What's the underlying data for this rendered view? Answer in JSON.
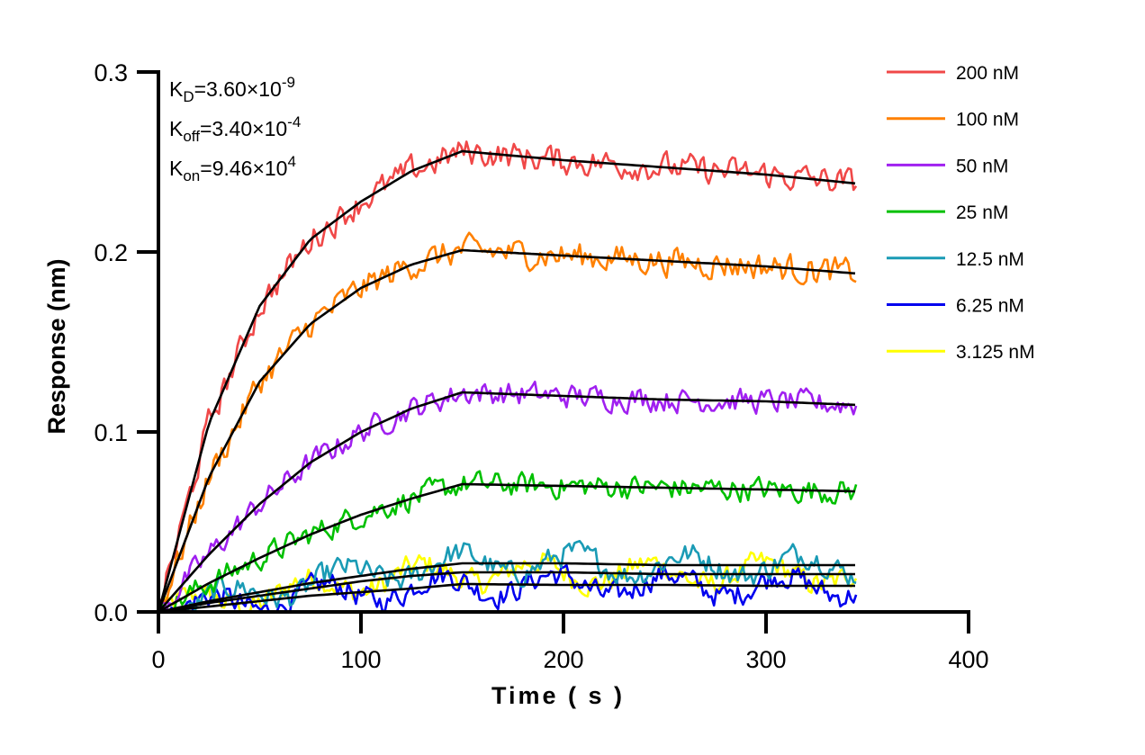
{
  "chart_data": {
    "type": "line",
    "xlabel": "Time ( s )",
    "ylabel": "Response (nm)",
    "xlim": [
      0,
      400
    ],
    "ylim": [
      0,
      0.3
    ],
    "xticks": [
      "0",
      "100",
      "200",
      "300",
      "400"
    ],
    "yticks": [
      "0.0",
      "0.1",
      "0.2",
      "0.3"
    ],
    "grid": false,
    "legend_position": "right",
    "annotations": [
      {
        "main": "K",
        "sub": "D",
        "rest": "=3.60×10",
        "sup": "-9"
      },
      {
        "main": "K",
        "sub": "off",
        "rest": "=3.40×10",
        "sup": "-4"
      },
      {
        "main": "K",
        "sub": "on",
        "rest": "=9.46×10",
        "sup": "4"
      }
    ],
    "fit_color": "#000000",
    "x": [
      0,
      25,
      50,
      75,
      100,
      125,
      150,
      200,
      250,
      300,
      345
    ],
    "series": [
      {
        "name": "200 nM",
        "color": "#f04848",
        "values": [
          0,
          0.105,
          0.17,
          0.207,
          0.228,
          0.245,
          0.256,
          0.251,
          0.247,
          0.243,
          0.238
        ]
      },
      {
        "name": "100 nM",
        "color": "#ff8000",
        "values": [
          0,
          0.075,
          0.128,
          0.16,
          0.18,
          0.193,
          0.201,
          0.198,
          0.195,
          0.192,
          0.188
        ]
      },
      {
        "name": "50 nM",
        "color": "#a020f0",
        "values": [
          0,
          0.032,
          0.06,
          0.083,
          0.1,
          0.113,
          0.122,
          0.12,
          0.118,
          0.117,
          0.115
        ]
      },
      {
        "name": "25 nM",
        "color": "#00c000",
        "values": [
          0,
          0.016,
          0.03,
          0.043,
          0.054,
          0.063,
          0.071,
          0.07,
          0.069,
          0.068,
          0.067
        ]
      },
      {
        "name": "12.5 nM",
        "color": "#1a9bb5",
        "values": [
          0,
          0.006,
          0.011,
          0.016,
          0.02,
          0.024,
          0.027,
          0.027,
          0.026,
          0.026,
          0.026
        ]
      },
      {
        "name": "6.25 nM",
        "color": "#0000ee",
        "values": [
          0,
          0.003,
          0.006,
          0.009,
          0.011,
          0.013,
          0.0155,
          0.015,
          0.015,
          0.0145,
          0.0145
        ]
      },
      {
        "name": "3.125 nM",
        "color": "#ffff00",
        "values": [
          0,
          0.005,
          0.009,
          0.013,
          0.017,
          0.02,
          0.022,
          0.022,
          0.021,
          0.021,
          0.021
        ]
      }
    ]
  }
}
